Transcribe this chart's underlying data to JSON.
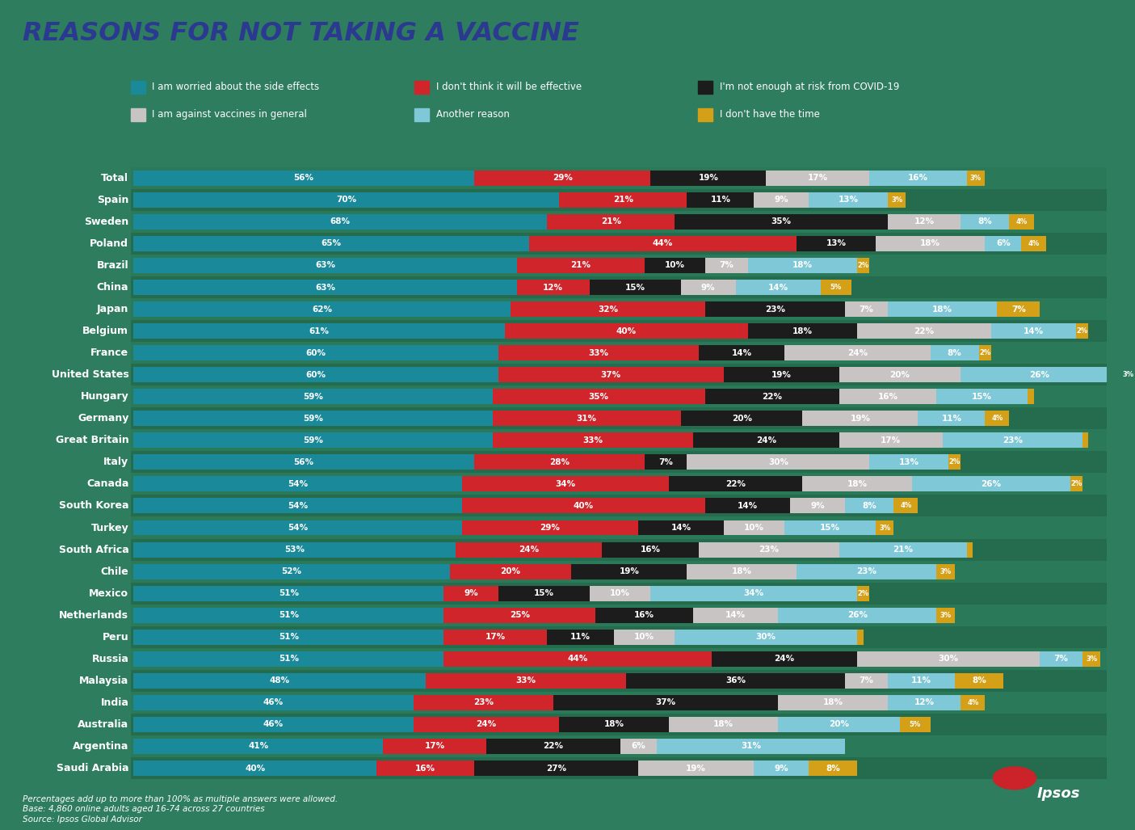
{
  "title": "REASONS FOR NOT TAKING A VACCINE",
  "title_color": "#2B3990",
  "background_color": "#2E7D5E",
  "legend_labels": [
    "I am worried about the side effects",
    "I don't think it will be effective",
    "I'm not enough at risk from COVID-19",
    "I am against vaccines in general",
    "Another reason",
    "I don't have the time"
  ],
  "colors": [
    "#1A8A9A",
    "#D0262B",
    "#1C1C1C",
    "#C8C4C4",
    "#7EC8D8",
    "#D4A017"
  ],
  "countries": [
    "Total",
    "Spain",
    "Sweden",
    "Poland",
    "Brazil",
    "China",
    "Japan",
    "Belgium",
    "France",
    "United States",
    "Hungary",
    "Germany",
    "Great Britain",
    "Italy",
    "Canada",
    "South Korea",
    "Turkey",
    "South Africa",
    "Chile",
    "Mexico",
    "Netherlands",
    "Peru",
    "Russia",
    "Malaysia",
    "India",
    "Australia",
    "Argentina",
    "Saudi Arabia"
  ],
  "data": {
    "Total": [
      56,
      29,
      19,
      17,
      16,
      3
    ],
    "Spain": [
      70,
      21,
      11,
      9,
      13,
      3
    ],
    "Sweden": [
      68,
      21,
      35,
      12,
      8,
      4
    ],
    "Poland": [
      65,
      44,
      13,
      18,
      6,
      4
    ],
    "Brazil": [
      63,
      21,
      10,
      7,
      18,
      2
    ],
    "China": [
      63,
      12,
      15,
      9,
      14,
      5
    ],
    "Japan": [
      62,
      32,
      23,
      7,
      18,
      7
    ],
    "Belgium": [
      61,
      40,
      18,
      22,
      14,
      2
    ],
    "France": [
      60,
      33,
      14,
      24,
      8,
      2
    ],
    "United States": [
      60,
      37,
      19,
      20,
      26,
      3
    ],
    "Hungary": [
      59,
      35,
      22,
      16,
      15,
      1
    ],
    "Germany": [
      59,
      31,
      20,
      19,
      11,
      4
    ],
    "Great Britain": [
      59,
      33,
      24,
      17,
      23,
      1
    ],
    "Italy": [
      56,
      28,
      7,
      30,
      13,
      2
    ],
    "Canada": [
      54,
      34,
      22,
      18,
      26,
      2
    ],
    "South Korea": [
      54,
      40,
      14,
      9,
      8,
      4
    ],
    "Turkey": [
      54,
      29,
      14,
      10,
      15,
      3
    ],
    "South Africa": [
      53,
      24,
      16,
      23,
      21,
      1
    ],
    "Chile": [
      52,
      20,
      19,
      18,
      23,
      3
    ],
    "Mexico": [
      51,
      9,
      15,
      10,
      34,
      2
    ],
    "Netherlands": [
      51,
      25,
      16,
      14,
      26,
      3
    ],
    "Peru": [
      51,
      17,
      11,
      10,
      30,
      1
    ],
    "Russia": [
      51,
      44,
      24,
      30,
      7,
      3
    ],
    "Malaysia": [
      48,
      33,
      36,
      7,
      11,
      8
    ],
    "India": [
      46,
      23,
      37,
      18,
      12,
      4
    ],
    "Australia": [
      46,
      24,
      18,
      18,
      20,
      5
    ],
    "Argentina": [
      41,
      17,
      22,
      6,
      31,
      0
    ],
    "Saudi Arabia": [
      40,
      16,
      27,
      19,
      9,
      8
    ]
  },
  "row_colors": [
    "#2A7A5A",
    "#256B4E"
  ],
  "footnote1": "Percentages add up to more than 100% as multiple answers were allowed.",
  "footnote2": "Base: 4,860 online adults aged 16-74 across 27 countries",
  "footnote3": "Source: Ipsos Global Advisor",
  "bar_height": 0.7,
  "figsize": [
    14.05,
    10.27
  ]
}
